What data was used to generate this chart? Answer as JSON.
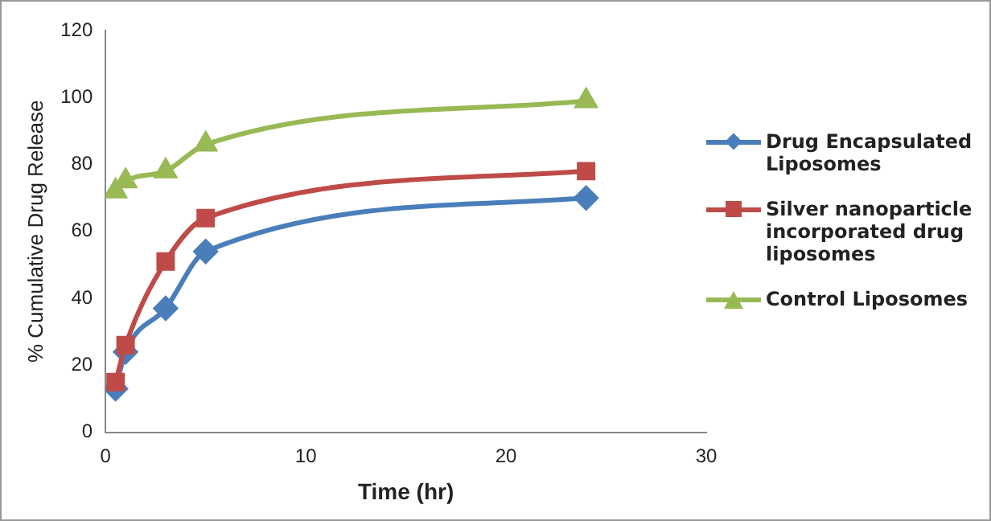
{
  "chart_data": {
    "type": "line",
    "xlabel": "Time (hr)",
    "ylabel": "% Cumulative Drug Release",
    "x": [
      0.5,
      1,
      3,
      5,
      24
    ],
    "series": [
      {
        "name": "Drug Encapsulated Liposomes",
        "color": "#4a7ebb",
        "marker": "diamond",
        "values": [
          13,
          24,
          37,
          54,
          70
        ]
      },
      {
        "name": "Silver nanoparticle incorporated drug liposomes",
        "color": "#be4b48",
        "marker": "square",
        "values": [
          15,
          26,
          51,
          64,
          78
        ]
      },
      {
        "name": "Control Liposomes",
        "color": "#98b954",
        "marker": "triangle",
        "values": [
          72,
          75,
          78,
          86,
          99
        ]
      }
    ],
    "xlim": [
      0,
      30
    ],
    "xticks": [
      0,
      10,
      20,
      30
    ],
    "ylim": [
      0,
      120
    ],
    "yticks": [
      0,
      20,
      40,
      60,
      80,
      100,
      120
    ],
    "grid": false,
    "legend": "right"
  }
}
